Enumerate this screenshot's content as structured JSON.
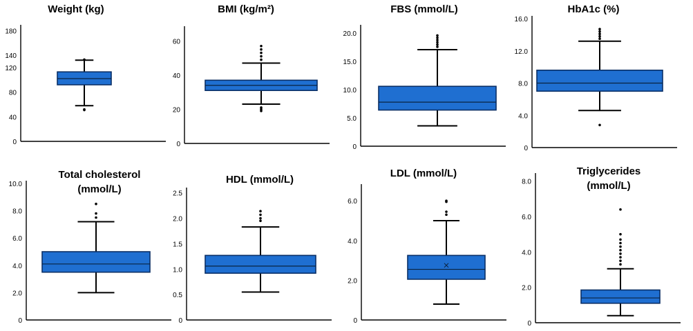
{
  "colors": {
    "box_fill": "#1f6fd1",
    "box_edge": "#0a2f66",
    "axis": "#000000",
    "text": "#000000"
  },
  "chart_data": [
    {
      "type": "box",
      "title_lines": [
        "Weight (kg)"
      ],
      "ticks": [
        "0",
        "40",
        "80",
        "120",
        "140",
        "180"
      ],
      "tick_values": [
        0,
        40,
        80,
        120,
        140,
        180
      ],
      "ylim": [
        0,
        185
      ],
      "min": 58,
      "q1": 92,
      "median": 102,
      "q3": 113,
      "max": 132,
      "outliers": [
        51,
        52,
        133
      ]
    },
    {
      "type": "box",
      "title_lines": [
        "BMI (kg/m²)"
      ],
      "ticks": [
        "0",
        "20",
        "40",
        "60"
      ],
      "tick_values": [
        0,
        20,
        40,
        60
      ],
      "ylim": [
        0,
        67
      ],
      "min": 23,
      "q1": 31,
      "median": 34,
      "q3": 37,
      "max": 47,
      "outliers": [
        19,
        20,
        21,
        49,
        51,
        53,
        55,
        57
      ]
    },
    {
      "type": "box",
      "title_lines": [
        "FBS (mmol/L)"
      ],
      "ticks": [
        "0",
        "5.0",
        "10.0",
        "15.0",
        "20.0"
      ],
      "tick_values": [
        0,
        5,
        10,
        15,
        20
      ],
      "ylim": [
        0,
        21
      ],
      "min": 3.6,
      "q1": 6.4,
      "median": 7.8,
      "q3": 10.6,
      "max": 17.1,
      "outliers": [
        17.6,
        18.0,
        18.4,
        18.8,
        19.2,
        19.6
      ]
    },
    {
      "type": "box",
      "title_lines": [
        "HbA1c (%)"
      ],
      "ticks": [
        "0",
        "4.0",
        "8.0",
        "12.0",
        "16.0"
      ],
      "tick_values": [
        0,
        4,
        8,
        12,
        16
      ],
      "ylim": [
        0,
        16
      ],
      "min": 4.6,
      "q1": 7.0,
      "median": 8.0,
      "q3": 9.6,
      "max": 13.2,
      "outliers": [
        2.8,
        13.5,
        13.8,
        14.1,
        14.4,
        14.7
      ]
    },
    {
      "type": "box",
      "title_lines": [
        "Total cholesterol",
        "(mmol/L)"
      ],
      "ticks": [
        "0",
        "2.0",
        "4.0",
        "6.0",
        "8.0",
        "10.0"
      ],
      "tick_values": [
        0,
        2,
        4,
        6,
        8,
        10
      ],
      "ylim": [
        0,
        10
      ],
      "min": 2.0,
      "q1": 3.5,
      "median": 4.1,
      "q3": 5.0,
      "max": 7.2,
      "outliers": [
        7.5,
        7.8,
        8.5
      ]
    },
    {
      "type": "box",
      "title_lines": [
        "HDL (mmol/L)"
      ],
      "ticks": [
        "0",
        "0.5",
        "1.0",
        "1.5",
        "2.0",
        "2.5"
      ],
      "tick_values": [
        0,
        0.5,
        1.0,
        1.5,
        2.0,
        2.5
      ],
      "ylim": [
        0,
        2.55
      ],
      "min": 0.55,
      "q1": 0.92,
      "median": 1.06,
      "q3": 1.27,
      "max": 1.83,
      "outliers": [
        1.95,
        2.0,
        2.07,
        2.14
      ]
    },
    {
      "type": "box",
      "title_lines": [
        "LDL (mmol/L)"
      ],
      "ticks": [
        "0",
        "2.0",
        "4.0",
        "6.0"
      ],
      "tick_values": [
        0,
        2,
        4,
        6
      ],
      "ylim": [
        0,
        6.7
      ],
      "min": 0.8,
      "q1": 2.05,
      "median": 2.55,
      "q3": 3.25,
      "max": 5.0,
      "outliers": [
        5.3,
        5.45,
        5.95,
        6.0
      ],
      "mean": 2.75
    },
    {
      "type": "box",
      "title_lines": [
        "Triglycerides",
        "(mmol/L)"
      ],
      "ticks": [
        "0",
        "2.0",
        "4.0",
        "6.0",
        "8.0"
      ],
      "tick_values": [
        0,
        2,
        4,
        6,
        8
      ],
      "ylim": [
        0,
        8.3
      ],
      "min": 0.4,
      "q1": 1.1,
      "median": 1.4,
      "q3": 1.85,
      "max": 3.05,
      "outliers": [
        3.3,
        3.5,
        3.7,
        3.9,
        4.1,
        4.3,
        4.5,
        4.7,
        5.0,
        6.4
      ]
    }
  ]
}
